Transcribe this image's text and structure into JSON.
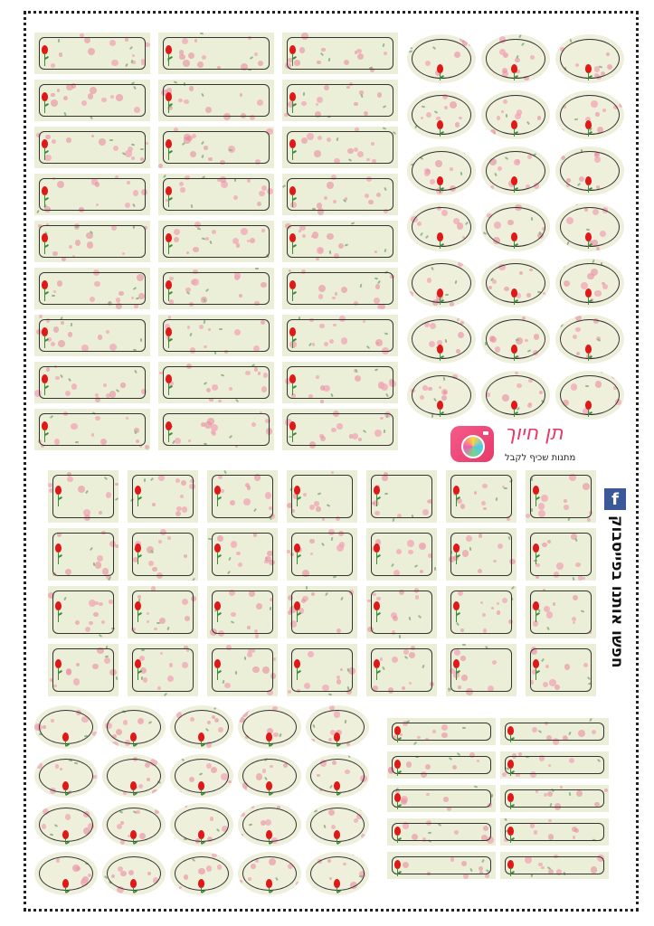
{
  "brand": {
    "name": "תן חיוך",
    "tagline": "מתנות שכיף לקבל"
  },
  "facebook": {
    "icon": "f",
    "text": "חפשו אותנו בפייסבוק"
  },
  "colors": {
    "label_background": "#ecefd8",
    "blossom": "#f2a6b6",
    "tulip": "#e01818",
    "stem": "#3f8a3a",
    "frame": "#222222",
    "facebook": "#3b5998",
    "brand_pink": "#e53a6a"
  },
  "label_groups": [
    {
      "name": "rectangles-top-left",
      "shape": "rect",
      "rows": 9,
      "cols": 3
    },
    {
      "name": "ovals-top-right",
      "shape": "oval",
      "rows": 7,
      "cols": 3
    },
    {
      "name": "rectangles-middle",
      "shape": "rect",
      "rows": 4,
      "cols": 7
    },
    {
      "name": "ovals-bottom-left",
      "shape": "oval",
      "rows": 4,
      "cols": 5
    },
    {
      "name": "strips-bottom-right",
      "shape": "rect",
      "rows": 5,
      "cols": 2
    }
  ]
}
